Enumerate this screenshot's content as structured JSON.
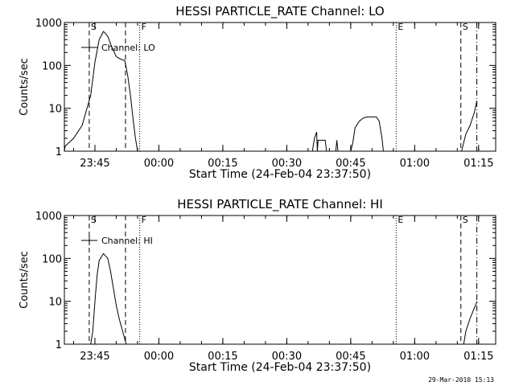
{
  "chart_data": [
    {
      "type": "line",
      "title": "HESSI PARTICLE_RATE Channel: LO",
      "xlabel": "Start Time (24-Feb-04 23:37:50)",
      "ylabel": "Counts/sec",
      "yscale": "log",
      "ylim": [
        1,
        1000
      ],
      "xlim": [
        "23:37:50",
        "01:19:00"
      ],
      "x_tick_labels": [
        "23:45",
        "00:00",
        "00:15",
        "00:30",
        "00:45",
        "01:00",
        "01:15"
      ],
      "y_tick_labels": [
        "1",
        "10",
        "100",
        "1000"
      ],
      "legend": "Channel: LO",
      "legend_placement": "top-left",
      "grid": false,
      "markers": [
        {
          "label": "S",
          "time": "23:43:40",
          "style": "dashed"
        },
        {
          "label": "",
          "time": "23:52:10",
          "style": "dashed"
        },
        {
          "label": "F",
          "time": "23:55:30",
          "style": "dotted"
        },
        {
          "label": "E",
          "time": "00:55:40",
          "style": "dotted"
        },
        {
          "label": "S",
          "time": "01:10:50",
          "style": "dashed"
        },
        {
          "label": "",
          "time": "01:14:35",
          "style": "dashdot"
        }
      ],
      "series": [
        {
          "segments": [
            [
              [
                "23:37:50",
                1
              ],
              [
                "23:38:00",
                1.3
              ],
              [
                "23:40:00",
                2
              ],
              [
                "23:42:00",
                4
              ],
              [
                "23:43:00",
                9
              ],
              [
                "23:44:00",
                20
              ],
              [
                "23:45:00",
                120
              ],
              [
                "23:46:00",
                400
              ],
              [
                "23:47:00",
                620
              ],
              [
                "23:48:00",
                480
              ],
              [
                "23:49:00",
                260
              ],
              [
                "23:50:00",
                160
              ],
              [
                "23:51:00",
                140
              ],
              [
                "23:52:00",
                130
              ],
              [
                "23:52:40",
                60
              ],
              [
                "23:53:20",
                20
              ],
              [
                "23:54:00",
                5
              ],
              [
                "23:54:30",
                2
              ],
              [
                "23:55:00",
                1
              ]
            ],
            [
              [
                "00:36:00",
                1
              ],
              [
                "00:36:30",
                2
              ],
              [
                "00:37:00",
                2.8
              ],
              [
                "00:37:10",
                1
              ],
              [
                "00:37:20",
                1.8
              ],
              [
                "00:38:00",
                1.8
              ],
              [
                "00:39:00",
                1.8
              ],
              [
                "00:39:20",
                1
              ]
            ],
            [
              [
                "00:41:30",
                1
              ],
              [
                "00:41:45",
                1.8
              ],
              [
                "00:42:00",
                1
              ]
            ],
            [
              [
                "00:45:00",
                1
              ],
              [
                "00:45:30",
                1.6
              ],
              [
                "00:46:00",
                3.5
              ],
              [
                "00:47:00",
                5
              ],
              [
                "00:48:00",
                6
              ],
              [
                "00:49:00",
                6.3
              ],
              [
                "00:50:00",
                6.3
              ],
              [
                "00:51:00",
                6.3
              ],
              [
                "00:51:40",
                5
              ],
              [
                "00:52:20",
                2
              ],
              [
                "00:52:40",
                1
              ]
            ],
            [
              [
                "01:11:00",
                1
              ],
              [
                "01:12:00",
                2.5
              ],
              [
                "01:13:00",
                4
              ],
              [
                "01:14:00",
                8
              ],
              [
                "01:14:35",
                15
              ]
            ]
          ]
        }
      ]
    },
    {
      "type": "line",
      "title": "HESSI PARTICLE_RATE Channel: HI",
      "xlabel": "Start Time (24-Feb-04 23:37:50)",
      "ylabel": "Counts/sec",
      "yscale": "log",
      "ylim": [
        1,
        1000
      ],
      "xlim": [
        "23:37:50",
        "01:19:00"
      ],
      "x_tick_labels": [
        "23:45",
        "00:00",
        "00:15",
        "00:30",
        "00:45",
        "01:00",
        "01:15"
      ],
      "y_tick_labels": [
        "1",
        "10",
        "100",
        "1000"
      ],
      "legend": "Channel: HI",
      "legend_placement": "top-left",
      "grid": false,
      "markers": [
        {
          "label": "S",
          "time": "23:43:40",
          "style": "dashed"
        },
        {
          "label": "",
          "time": "23:52:10",
          "style": "dashed"
        },
        {
          "label": "F",
          "time": "23:55:30",
          "style": "dotted"
        },
        {
          "label": "E",
          "time": "00:55:40",
          "style": "dotted"
        },
        {
          "label": "S",
          "time": "01:10:50",
          "style": "dashed"
        },
        {
          "label": "",
          "time": "01:14:35",
          "style": "dashdot"
        }
      ],
      "series": [
        {
          "segments": [
            [
              [
                "23:44:00",
                1
              ],
              [
                "23:44:30",
                2
              ],
              [
                "23:45:00",
                10
              ],
              [
                "23:45:30",
                40
              ],
              [
                "23:46:00",
                90
              ],
              [
                "23:47:00",
                130
              ],
              [
                "23:48:00",
                100
              ],
              [
                "23:48:40",
                50
              ],
              [
                "23:49:20",
                20
              ],
              [
                "23:50:00",
                8
              ],
              [
                "23:50:40",
                4
              ],
              [
                "23:51:30",
                2
              ],
              [
                "23:52:20",
                1
              ]
            ],
            [
              [
                "01:11:30",
                1
              ],
              [
                "01:12:00",
                2
              ],
              [
                "01:13:00",
                4
              ],
              [
                "01:14:00",
                7
              ],
              [
                "01:14:40",
                10
              ]
            ]
          ]
        }
      ]
    }
  ],
  "footer": {
    "timestamp": "29-Mar-2010 15:13"
  }
}
